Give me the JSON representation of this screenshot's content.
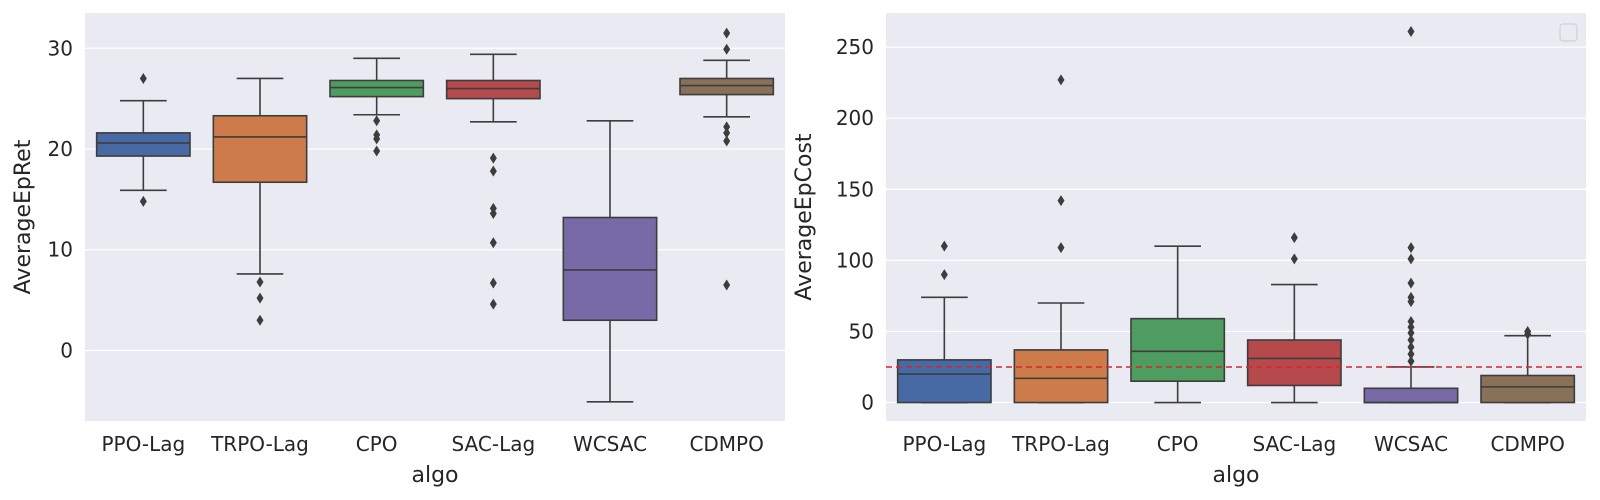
{
  "chart_data": [
    {
      "type": "box",
      "xlabel": "algo",
      "ylabel": "AverageEpRet",
      "ylim": [
        -7,
        33.5
      ],
      "yticks": [
        0,
        10,
        20,
        30
      ],
      "categories": [
        "PPO-Lag",
        "TRPO-Lag",
        "CPO",
        "SAC-Lag",
        "WCSAC",
        "CDMPO"
      ],
      "boxes": [
        {
          "category": "PPO-Lag",
          "color": "#4c72b0",
          "whisker_low": 15.9,
          "q1": 19.3,
          "median": 20.6,
          "q3": 21.6,
          "whisker_high": 24.8,
          "outliers": [
            27.0,
            14.8
          ]
        },
        {
          "category": "TRPO-Lag",
          "color": "#dd8452",
          "whisker_low": 7.6,
          "q1": 16.7,
          "median": 21.2,
          "q3": 23.3,
          "whisker_high": 27.0,
          "outliers": [
            6.8,
            5.2,
            3.0
          ]
        },
        {
          "category": "CPO",
          "color": "#55a868",
          "whisker_low": 23.4,
          "q1": 25.2,
          "median": 26.1,
          "q3": 26.8,
          "whisker_high": 29.0,
          "outliers": [
            22.8,
            21.4,
            21.0,
            19.8
          ]
        },
        {
          "category": "SAC-Lag",
          "color": "#c44e52",
          "whisker_low": 22.7,
          "q1": 25.0,
          "median": 26.0,
          "q3": 26.8,
          "whisker_high": 29.4,
          "outliers": [
            19.1,
            17.8,
            14.1,
            13.6,
            10.7,
            6.7,
            4.6
          ]
        },
        {
          "category": "WCSAC",
          "color": "#8172b3",
          "whisker_low": -5.1,
          "q1": 3.0,
          "median": 8.0,
          "q3": 13.2,
          "whisker_high": 22.8,
          "outliers": []
        },
        {
          "category": "CDMPO",
          "color": "#937860",
          "whisker_low": 23.2,
          "q1": 25.4,
          "median": 26.3,
          "q3": 27.0,
          "whisker_high": 28.8,
          "outliers": [
            31.5,
            29.9,
            22.2,
            21.6,
            20.8,
            6.5
          ]
        }
      ]
    },
    {
      "type": "box",
      "xlabel": "algo",
      "ylabel": "AverageEpCost",
      "ylim": [
        -13,
        274
      ],
      "yticks": [
        0,
        50,
        100,
        150,
        200,
        250
      ],
      "threshold": {
        "value": 25,
        "color": "#d62728",
        "style": "dashed"
      },
      "legend": "top-right (empty)",
      "categories": [
        "PPO-Lag",
        "TRPO-Lag",
        "CPO",
        "SAC-Lag",
        "WCSAC",
        "CDMPO"
      ],
      "boxes": [
        {
          "category": "PPO-Lag",
          "color": "#4c72b0",
          "whisker_low": 0,
          "q1": 0,
          "median": 20,
          "q3": 30,
          "whisker_high": 74,
          "outliers": [
            110,
            90
          ]
        },
        {
          "category": "TRPO-Lag",
          "color": "#dd8452",
          "whisker_low": 0,
          "q1": 0,
          "median": 17,
          "q3": 37,
          "whisker_high": 70,
          "outliers": [
            227,
            142,
            109
          ]
        },
        {
          "category": "CPO",
          "color": "#55a868",
          "whisker_low": 0,
          "q1": 15,
          "median": 36,
          "q3": 59,
          "whisker_high": 110,
          "outliers": []
        },
        {
          "category": "SAC-Lag",
          "color": "#c44e52",
          "whisker_low": 0,
          "q1": 12,
          "median": 31,
          "q3": 44,
          "whisker_high": 83,
          "outliers": [
            116,
            101
          ]
        },
        {
          "category": "WCSAC",
          "color": "#8172b3",
          "whisker_low": 0,
          "q1": 0,
          "median": 0,
          "q3": 10,
          "whisker_high": 25,
          "outliers": [
            261,
            109,
            101,
            84,
            74,
            71,
            57,
            53,
            49,
            44,
            39,
            34,
            29
          ]
        },
        {
          "category": "CDMPO",
          "color": "#937860",
          "whisker_low": 0,
          "q1": 0,
          "median": 11,
          "q3": 19,
          "whisker_high": 47,
          "outliers": [
            50,
            48
          ]
        }
      ]
    }
  ]
}
